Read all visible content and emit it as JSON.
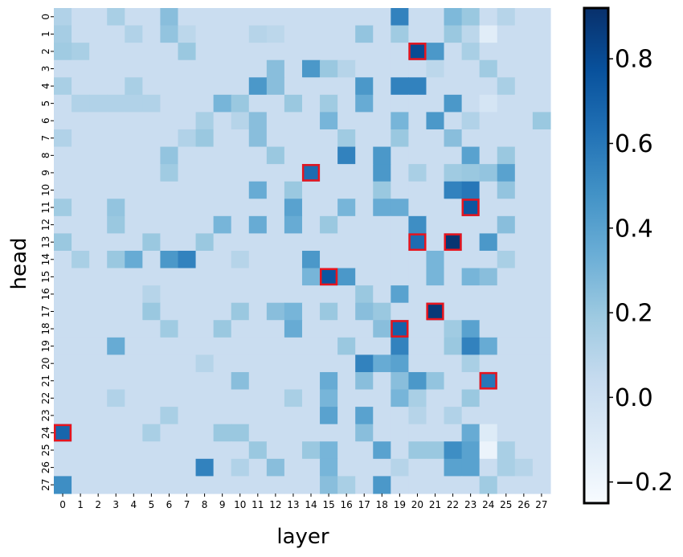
{
  "chart_data": {
    "type": "heatmap",
    "title": "",
    "xlabel": "layer",
    "ylabel": "head",
    "x_categories": [
      "0",
      "1",
      "2",
      "3",
      "4",
      "5",
      "6",
      "7",
      "8",
      "9",
      "10",
      "11",
      "12",
      "13",
      "14",
      "15",
      "16",
      "17",
      "18",
      "19",
      "20",
      "21",
      "22",
      "23",
      "24",
      "25",
      "26",
      "27"
    ],
    "y_categories": [
      "0",
      "1",
      "2",
      "3",
      "4",
      "5",
      "6",
      "7",
      "8",
      "9",
      "10",
      "11",
      "12",
      "13",
      "14",
      "15",
      "16",
      "17",
      "18",
      "19",
      "20",
      "21",
      "22",
      "23",
      "24",
      "25",
      "26",
      "27"
    ],
    "colormap": "Blues",
    "vmin": -0.25,
    "vmax": 0.92,
    "colorbar_ticks": [
      "−0.2",
      "0.0",
      "0.2",
      "0.4",
      "0.6",
      "0.8"
    ],
    "colorbar_tick_values": [
      -0.2,
      0.0,
      0.2,
      0.4,
      0.6,
      0.8
    ],
    "background_value": 0.02,
    "cells": [
      [
        0,
        0,
        0.12
      ],
      [
        0,
        3,
        0.15
      ],
      [
        0,
        6,
        0.25
      ],
      [
        0,
        19,
        0.55
      ],
      [
        0,
        22,
        0.28
      ],
      [
        0,
        23,
        0.2
      ],
      [
        0,
        25,
        0.1
      ],
      [
        1,
        0,
        0.16
      ],
      [
        1,
        4,
        0.12
      ],
      [
        1,
        6,
        0.22
      ],
      [
        1,
        7,
        0.08
      ],
      [
        1,
        11,
        0.1
      ],
      [
        1,
        12,
        0.08
      ],
      [
        1,
        17,
        0.22
      ],
      [
        1,
        19,
        0.18
      ],
      [
        1,
        22,
        0.2
      ],
      [
        1,
        23,
        0.08
      ],
      [
        1,
        24,
        -0.12
      ],
      [
        2,
        0,
        0.18
      ],
      [
        2,
        1,
        0.15
      ],
      [
        2,
        7,
        0.2
      ],
      [
        2,
        20,
        0.8
      ],
      [
        2,
        21,
        0.45
      ],
      [
        2,
        23,
        0.15
      ],
      [
        3,
        12,
        0.25
      ],
      [
        3,
        14,
        0.45
      ],
      [
        3,
        15,
        0.2
      ],
      [
        3,
        16,
        0.1
      ],
      [
        3,
        21,
        0.08
      ],
      [
        3,
        24,
        0.18
      ],
      [
        4,
        0,
        0.15
      ],
      [
        4,
        4,
        0.15
      ],
      [
        4,
        11,
        0.45
      ],
      [
        4,
        12,
        0.25
      ],
      [
        4,
        17,
        0.45
      ],
      [
        4,
        19,
        0.55
      ],
      [
        4,
        20,
        0.55
      ],
      [
        4,
        25,
        0.15
      ],
      [
        5,
        1,
        0.12
      ],
      [
        5,
        2,
        0.12
      ],
      [
        5,
        3,
        0.12
      ],
      [
        5,
        4,
        0.12
      ],
      [
        5,
        5,
        0.12
      ],
      [
        5,
        9,
        0.3
      ],
      [
        5,
        10,
        0.2
      ],
      [
        5,
        13,
        0.2
      ],
      [
        5,
        15,
        0.18
      ],
      [
        5,
        17,
        0.35
      ],
      [
        5,
        22,
        0.45
      ],
      [
        5,
        24,
        -0.05
      ],
      [
        6,
        8,
        0.15
      ],
      [
        6,
        10,
        0.1
      ],
      [
        6,
        11,
        0.25
      ],
      [
        6,
        15,
        0.3
      ],
      [
        6,
        19,
        0.3
      ],
      [
        6,
        21,
        0.45
      ],
      [
        6,
        23,
        0.12
      ],
      [
        6,
        27,
        0.2
      ],
      [
        7,
        0,
        0.12
      ],
      [
        7,
        7,
        0.12
      ],
      [
        7,
        8,
        0.2
      ],
      [
        7,
        11,
        0.25
      ],
      [
        7,
        16,
        0.18
      ],
      [
        7,
        19,
        0.2
      ],
      [
        7,
        22,
        0.25
      ],
      [
        8,
        6,
        0.22
      ],
      [
        8,
        12,
        0.2
      ],
      [
        8,
        16,
        0.55
      ],
      [
        8,
        18,
        0.45
      ],
      [
        8,
        23,
        0.4
      ],
      [
        8,
        25,
        0.2
      ],
      [
        9,
        6,
        0.18
      ],
      [
        9,
        14,
        0.65
      ],
      [
        9,
        18,
        0.45
      ],
      [
        9,
        20,
        0.15
      ],
      [
        9,
        22,
        0.18
      ],
      [
        9,
        23,
        0.2
      ],
      [
        9,
        24,
        0.22
      ],
      [
        9,
        25,
        0.4
      ],
      [
        10,
        11,
        0.35
      ],
      [
        10,
        13,
        0.2
      ],
      [
        10,
        18,
        0.2
      ],
      [
        10,
        22,
        0.55
      ],
      [
        10,
        23,
        0.6
      ],
      [
        10,
        25,
        0.22
      ],
      [
        11,
        0,
        0.18
      ],
      [
        11,
        3,
        0.22
      ],
      [
        11,
        13,
        0.4
      ],
      [
        11,
        16,
        0.3
      ],
      [
        11,
        18,
        0.35
      ],
      [
        11,
        19,
        0.35
      ],
      [
        11,
        23,
        0.75
      ],
      [
        12,
        3,
        0.2
      ],
      [
        12,
        9,
        0.3
      ],
      [
        12,
        11,
        0.35
      ],
      [
        12,
        13,
        0.35
      ],
      [
        12,
        15,
        0.2
      ],
      [
        12,
        20,
        0.5
      ],
      [
        12,
        25,
        0.25
      ],
      [
        13,
        0,
        0.2
      ],
      [
        13,
        5,
        0.2
      ],
      [
        13,
        8,
        0.2
      ],
      [
        13,
        20,
        0.65
      ],
      [
        13,
        22,
        0.9
      ],
      [
        13,
        24,
        0.45
      ],
      [
        14,
        1,
        0.15
      ],
      [
        14,
        3,
        0.2
      ],
      [
        14,
        4,
        0.35
      ],
      [
        14,
        6,
        0.45
      ],
      [
        14,
        7,
        0.55
      ],
      [
        14,
        10,
        0.1
      ],
      [
        14,
        14,
        0.45
      ],
      [
        14,
        21,
        0.3
      ],
      [
        14,
        25,
        0.15
      ],
      [
        15,
        14,
        0.3
      ],
      [
        15,
        15,
        0.75
      ],
      [
        15,
        16,
        0.45
      ],
      [
        15,
        21,
        0.3
      ],
      [
        15,
        23,
        0.3
      ],
      [
        15,
        24,
        0.25
      ],
      [
        16,
        5,
        0.1
      ],
      [
        16,
        17,
        0.2
      ],
      [
        16,
        19,
        0.4
      ],
      [
        17,
        5,
        0.2
      ],
      [
        17,
        10,
        0.2
      ],
      [
        17,
        12,
        0.25
      ],
      [
        17,
        13,
        0.3
      ],
      [
        17,
        15,
        0.2
      ],
      [
        17,
        17,
        0.25
      ],
      [
        17,
        18,
        0.2
      ],
      [
        17,
        21,
        0.88
      ],
      [
        18,
        6,
        0.18
      ],
      [
        18,
        9,
        0.2
      ],
      [
        18,
        13,
        0.35
      ],
      [
        18,
        18,
        0.25
      ],
      [
        18,
        19,
        0.7
      ],
      [
        18,
        22,
        0.18
      ],
      [
        18,
        23,
        0.4
      ],
      [
        19,
        3,
        0.35
      ],
      [
        19,
        16,
        0.2
      ],
      [
        19,
        19,
        0.55
      ],
      [
        19,
        22,
        0.2
      ],
      [
        19,
        23,
        0.55
      ],
      [
        19,
        24,
        0.35
      ],
      [
        20,
        8,
        0.1
      ],
      [
        20,
        17,
        0.55
      ],
      [
        20,
        18,
        0.35
      ],
      [
        20,
        19,
        0.4
      ],
      [
        20,
        23,
        0.15
      ],
      [
        21,
        10,
        0.25
      ],
      [
        21,
        15,
        0.35
      ],
      [
        21,
        17,
        0.25
      ],
      [
        21,
        19,
        0.25
      ],
      [
        21,
        20,
        0.45
      ],
      [
        21,
        21,
        0.22
      ],
      [
        21,
        24,
        0.6
      ],
      [
        22,
        3,
        0.12
      ],
      [
        22,
        13,
        0.15
      ],
      [
        22,
        15,
        0.3
      ],
      [
        22,
        19,
        0.3
      ],
      [
        22,
        20,
        0.15
      ],
      [
        22,
        23,
        0.2
      ],
      [
        23,
        6,
        0.15
      ],
      [
        23,
        15,
        0.4
      ],
      [
        23,
        17,
        0.4
      ],
      [
        23,
        20,
        0.1
      ],
      [
        23,
        22,
        0.12
      ],
      [
        24,
        0,
        0.68
      ],
      [
        24,
        5,
        0.15
      ],
      [
        24,
        9,
        0.2
      ],
      [
        24,
        10,
        0.2
      ],
      [
        24,
        17,
        0.25
      ],
      [
        24,
        23,
        0.35
      ],
      [
        24,
        24,
        -0.1
      ],
      [
        25,
        11,
        0.2
      ],
      [
        25,
        14,
        0.2
      ],
      [
        25,
        15,
        0.3
      ],
      [
        25,
        18,
        0.4
      ],
      [
        25,
        20,
        0.2
      ],
      [
        25,
        21,
        0.2
      ],
      [
        25,
        22,
        0.5
      ],
      [
        25,
        23,
        0.4
      ],
      [
        25,
        24,
        -0.18
      ],
      [
        25,
        25,
        0.15
      ],
      [
        26,
        8,
        0.55
      ],
      [
        26,
        10,
        0.12
      ],
      [
        26,
        12,
        0.25
      ],
      [
        26,
        15,
        0.3
      ],
      [
        26,
        19,
        0.1
      ],
      [
        26,
        22,
        0.4
      ],
      [
        26,
        23,
        0.4
      ],
      [
        26,
        25,
        0.15
      ],
      [
        26,
        26,
        0.1
      ],
      [
        27,
        0,
        0.5
      ],
      [
        27,
        15,
        0.25
      ],
      [
        27,
        16,
        0.15
      ],
      [
        27,
        18,
        0.45
      ],
      [
        27,
        24,
        0.18
      ]
    ],
    "highlighted_cells": [
      [
        2,
        20
      ],
      [
        9,
        14
      ],
      [
        11,
        23
      ],
      [
        13,
        20
      ],
      [
        13,
        22
      ],
      [
        15,
        15
      ],
      [
        17,
        21
      ],
      [
        18,
        19
      ],
      [
        21,
        24
      ],
      [
        24,
        0
      ]
    ],
    "highlight_color": "#e8141d",
    "frame_color": "#000000"
  }
}
